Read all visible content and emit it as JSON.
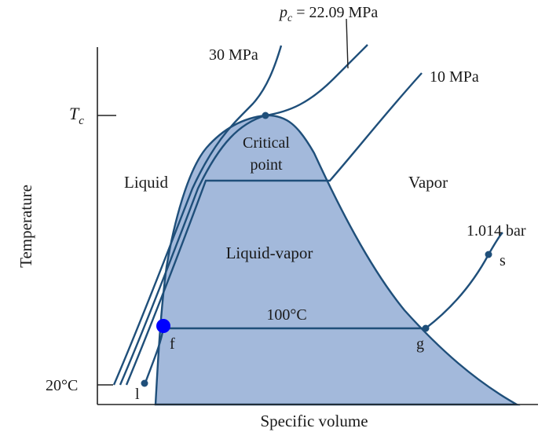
{
  "axes": {
    "xlabel": "Specific volume",
    "ylabel": "Temperature",
    "tc_label": "T",
    "tc_sub": "c",
    "t20_label": "20°C"
  },
  "pressure_labels": {
    "critical_p": "p",
    "critical_p_sub": "c",
    "critical_p_value": " = 22.09 MPa",
    "p30": "30 MPa",
    "p10": "10 MPa",
    "p_atm": "1.014 bar"
  },
  "regions": {
    "liquid": "Liquid",
    "vapor": "Vapor",
    "two_phase": "Liquid-vapor",
    "critical_line1": "Critical",
    "critical_line2": "point"
  },
  "isotherm": {
    "label": "100°C"
  },
  "points": {
    "f": "f",
    "g": "g",
    "s": "s",
    "l": "l"
  },
  "colors": {
    "dome_fill": "#a3b9db",
    "line": "#1f4f7a",
    "marker": "#0000ff"
  }
}
